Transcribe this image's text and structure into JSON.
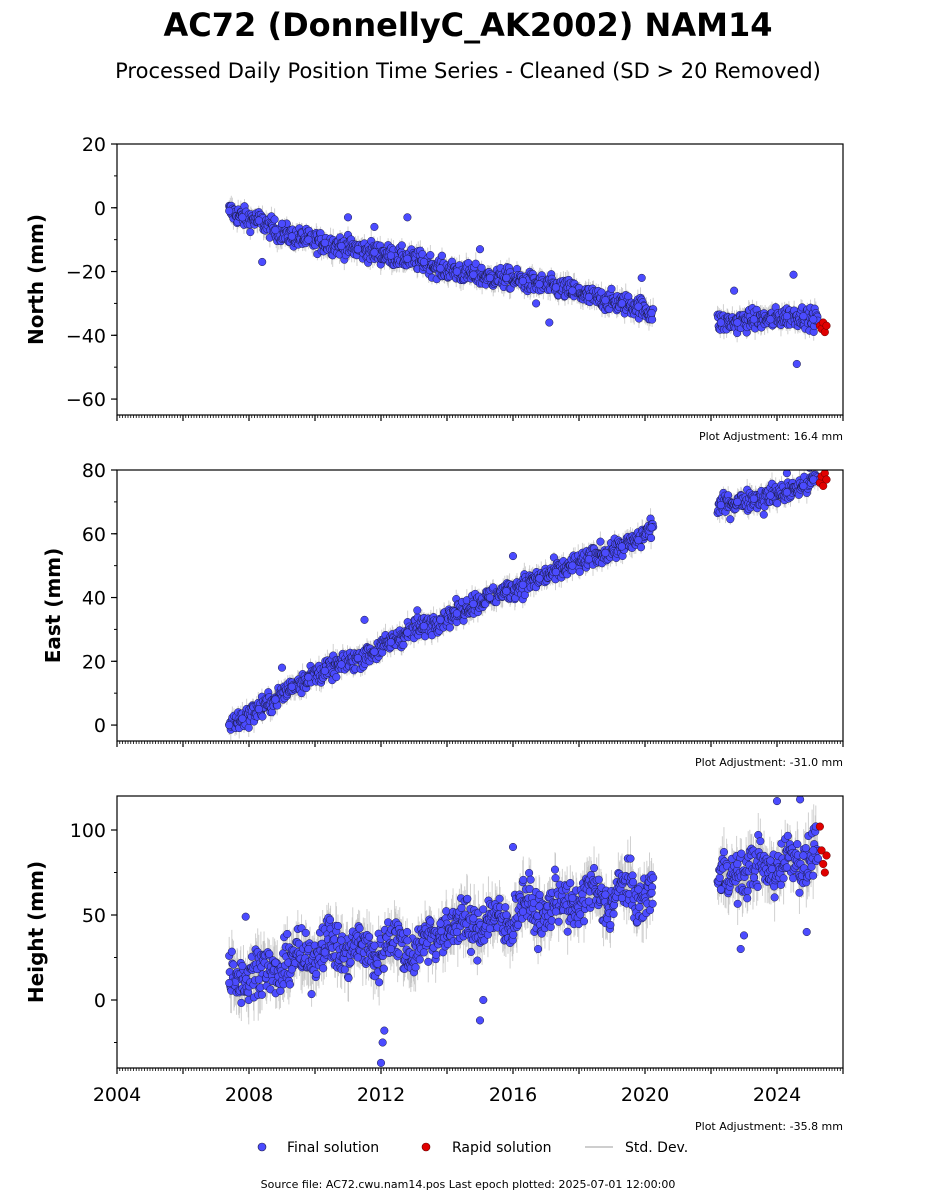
{
  "header": {
    "title": "AC72 (DonnellyC_AK2002) NAM14",
    "subtitle": "Processed Daily Position Time Series - Cleaned (SD > 20 Removed)"
  },
  "legend": {
    "final_label": "Final solution",
    "rapid_label": "Rapid solution",
    "std_label": "Std. Dev."
  },
  "footer": {
    "source": "Source file: AC72.cwu.nam14.pos  Last epoch plotted: 2025-07-01 12:00:00"
  },
  "colors": {
    "final": "#4b4bff",
    "rapid": "#e00000",
    "std": "#bdbdbd",
    "edge": "#1a1a40"
  },
  "chart_data": [
    {
      "type": "scatter",
      "ylabel": "North (mm)",
      "adjustment": "Plot Adjustment: 16.4 mm",
      "xlim": [
        2004,
        2026
      ],
      "ylim": [
        -65,
        20
      ],
      "yticks": [
        20,
        0,
        -20,
        -40,
        -60
      ],
      "ytick_labels": [
        "20",
        "0",
        "−20",
        "−40",
        "−60"
      ],
      "series": [
        {
          "name": "Final solution",
          "x": [
            2007.4,
            2007.8,
            2008.3,
            2008.8,
            2009.3,
            2009.8,
            2010.3,
            2010.8,
            2011.3,
            2011.8,
            2012.3,
            2012.8,
            2013.3,
            2013.8,
            2014.3,
            2014.8,
            2015.3,
            2015.8,
            2016.3,
            2016.8,
            2017.3,
            2017.8,
            2018.3,
            2018.8,
            2019.3,
            2019.8,
            2020.2,
            2022.3,
            2022.8,
            2023.3,
            2023.8,
            2024.3,
            2024.8,
            2025.1
          ],
          "y": [
            -1,
            -3,
            -4,
            -7,
            -9,
            -10,
            -11,
            -12,
            -13,
            -14,
            -15,
            -16,
            -17,
            -19,
            -20,
            -21,
            -22,
            -22,
            -23,
            -24,
            -25,
            -26,
            -28,
            -29,
            -30,
            -31,
            -33,
            -36,
            -36,
            -35,
            -35,
            -34,
            -34,
            -35
          ]
        },
        {
          "name": "Rapid solution",
          "x": [
            2025.3,
            2025.35,
            2025.4,
            2025.45,
            2025.5
          ],
          "y": [
            -37,
            -38,
            -36,
            -39,
            -37
          ]
        }
      ],
      "outliers": {
        "x": [
          2008.4,
          2009.0,
          2011.0,
          2011.8,
          2012.8,
          2015.0,
          2016.7,
          2017.1,
          2019.9,
          2022.7,
          2024.5,
          2024.6
        ],
        "y": [
          -17,
          -5,
          -3,
          -6,
          -3,
          -13,
          -30,
          -36,
          -22,
          -26,
          -21,
          -49
        ]
      }
    },
    {
      "type": "scatter",
      "ylabel": "East (mm)",
      "adjustment": "Plot Adjustment: -31.0 mm",
      "xlim": [
        2004,
        2026
      ],
      "ylim": [
        -5,
        80
      ],
      "yticks": [
        80,
        60,
        40,
        20,
        0
      ],
      "ytick_labels": [
        "80",
        "60",
        "40",
        "20",
        "0"
      ],
      "series": [
        {
          "name": "Final solution",
          "x": [
            2007.4,
            2007.8,
            2008.3,
            2008.8,
            2009.3,
            2009.8,
            2010.3,
            2010.8,
            2011.3,
            2011.8,
            2012.3,
            2012.8,
            2013.3,
            2013.8,
            2014.3,
            2014.8,
            2015.3,
            2015.8,
            2016.3,
            2016.8,
            2017.3,
            2017.8,
            2018.3,
            2018.8,
            2019.3,
            2019.8,
            2020.2,
            2022.3,
            2022.8,
            2023.3,
            2023.8,
            2024.3,
            2024.8,
            2025.1
          ],
          "y": [
            0,
            2,
            5,
            8,
            12,
            15,
            17,
            19,
            21,
            23,
            26,
            29,
            31,
            33,
            35,
            38,
            40,
            42,
            44,
            46,
            48,
            50,
            52,
            54,
            56,
            58,
            62,
            69,
            70,
            71,
            72,
            73,
            75,
            77
          ]
        },
        {
          "name": "Rapid solution",
          "x": [
            2025.3,
            2025.35,
            2025.4,
            2025.45,
            2025.5
          ],
          "y": [
            76,
            78,
            75,
            79,
            77
          ]
        }
      ],
      "outliers": {
        "x": [
          2009.0,
          2011.5,
          2013.1,
          2016.0,
          2023.6,
          2024.3
        ],
        "y": [
          18,
          33,
          36,
          53,
          66,
          79
        ]
      }
    },
    {
      "type": "scatter",
      "ylabel": "Height (mm)",
      "adjustment": "Plot Adjustment: -35.8 mm",
      "xlim": [
        2004,
        2026
      ],
      "ylim": [
        -40,
        120
      ],
      "yticks": [
        100,
        50,
        0
      ],
      "ytick_labels": [
        "100",
        "50",
        "0"
      ],
      "xticks": [
        2004,
        2008,
        2012,
        2016,
        2020,
        2024
      ],
      "xtick_labels": [
        "2004",
        "2008",
        "2012",
        "2016",
        "2020",
        "2024"
      ],
      "series": [
        {
          "name": "Final solution",
          "x": [
            2007.4,
            2007.8,
            2008.3,
            2008.8,
            2009.3,
            2009.8,
            2010.3,
            2010.8,
            2011.3,
            2011.8,
            2012.3,
            2012.8,
            2013.3,
            2013.8,
            2014.3,
            2014.8,
            2015.3,
            2015.8,
            2016.3,
            2016.8,
            2017.3,
            2017.8,
            2018.3,
            2018.8,
            2019.3,
            2019.8,
            2020.2,
            2022.3,
            2022.8,
            2023.3,
            2023.8,
            2024.3,
            2024.8,
            2025.1
          ],
          "y": [
            10,
            20,
            12,
            22,
            18,
            30,
            28,
            35,
            25,
            32,
            30,
            35,
            28,
            45,
            40,
            48,
            42,
            50,
            52,
            55,
            52,
            60,
            58,
            62,
            60,
            65,
            63,
            65,
            80,
            72,
            82,
            78,
            85,
            88
          ]
        },
        {
          "name": "Rapid solution",
          "x": [
            2025.3,
            2025.35,
            2025.4,
            2025.45,
            2025.5
          ],
          "y": [
            102,
            88,
            80,
            75,
            85
          ]
        }
      ],
      "outliers": {
        "x": [
          2007.9,
          2012.0,
          2012.05,
          2012.1,
          2015.0,
          2015.1,
          2016.0,
          2022.9,
          2023.0,
          2024.0,
          2024.7,
          2024.9
        ],
        "y": [
          49,
          -37,
          -25,
          -18,
          -12,
          0,
          90,
          30,
          38,
          117,
          118,
          40
        ]
      }
    }
  ]
}
